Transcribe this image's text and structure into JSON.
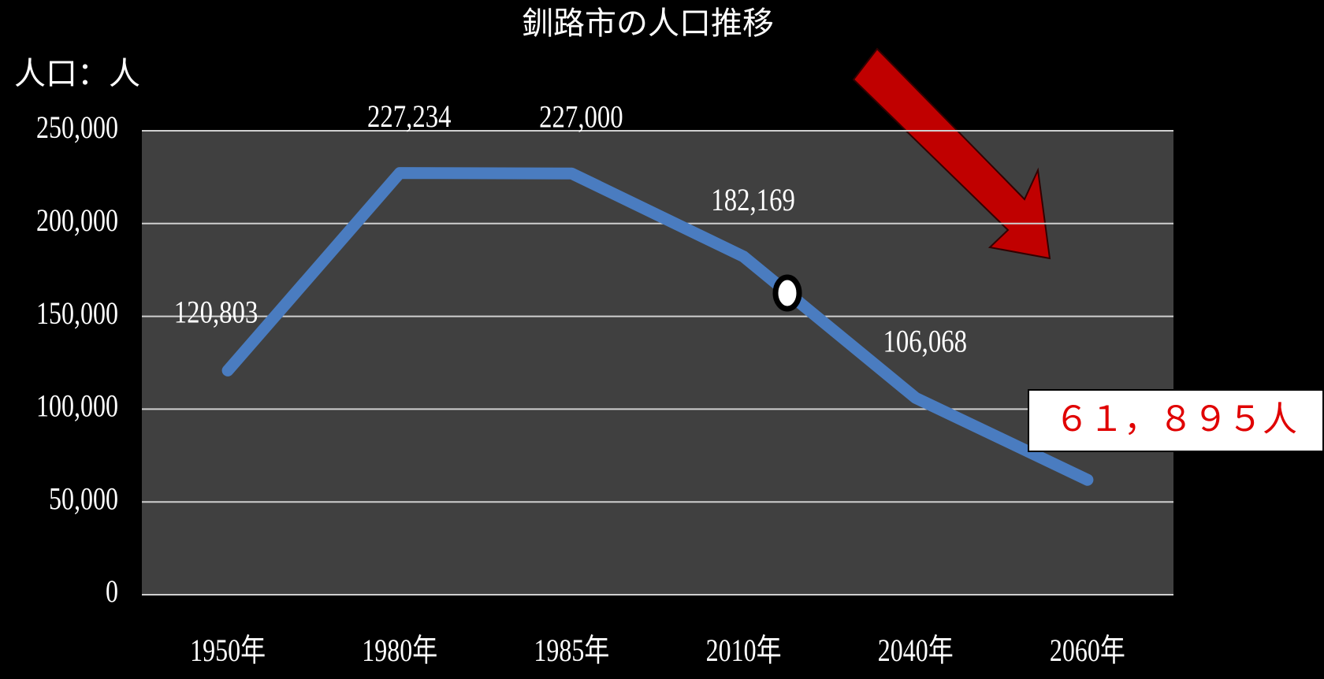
{
  "chart_data": {
    "type": "line",
    "title": "釧路市の人口推移",
    "y_label": "人口：人",
    "categories": [
      "1950年",
      "1980年",
      "1985年",
      "2010年",
      "2040年",
      "2060年"
    ],
    "series": [
      {
        "color": "#4a7cc0",
        "values": [
          120803,
          227234,
          227000,
          182169,
          106068,
          61895
        ],
        "value_labels": [
          "120,803",
          "227,234",
          "227,000",
          "182,169",
          "106,068",
          "６１，８９５人"
        ]
      }
    ],
    "ylim": [
      0,
      250000
    ],
    "yticks": [
      0,
      {
        "value": 50000,
        "label": "50,000"
      },
      {
        "value": 100000,
        "label": "100,000"
      },
      {
        "value": 150000,
        "label": "150,000"
      },
      {
        "value": 200000,
        "label": "200,000"
      },
      {
        "value": 250000,
        "label": "250,000"
      }
    ],
    "grid": true
  }
}
